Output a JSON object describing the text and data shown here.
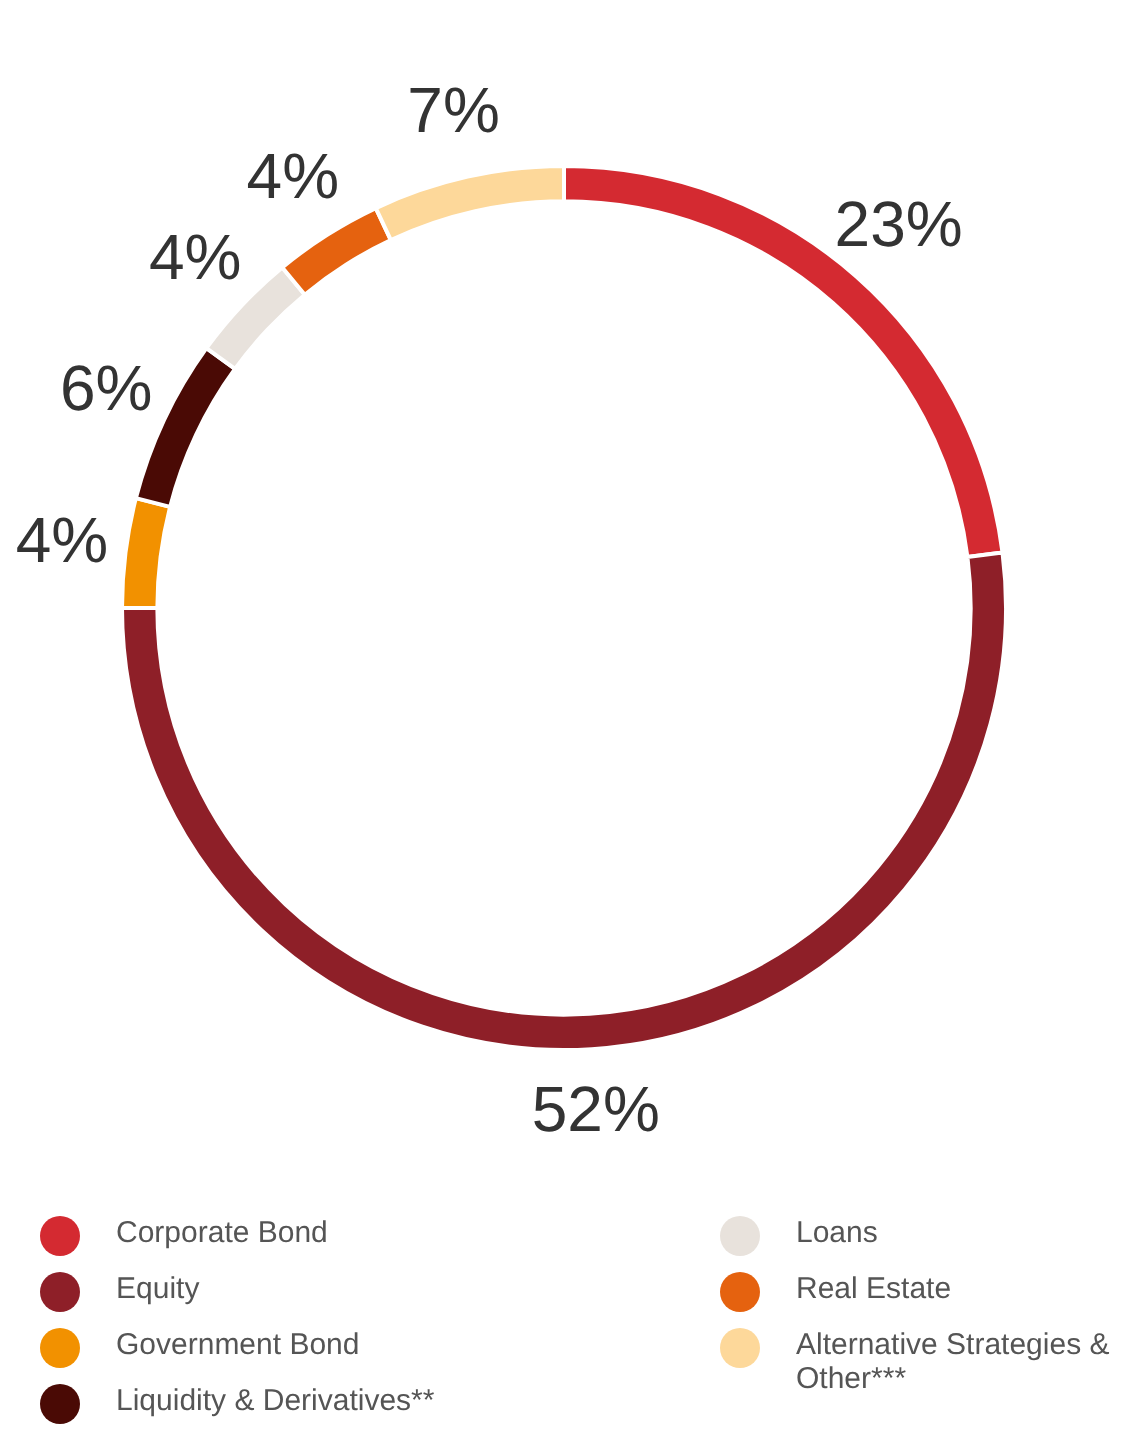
{
  "chart_data": {
    "type": "donut",
    "categories": [
      "Corporate Bond",
      "Equity",
      "Government Bond",
      "Liquidity & Derivatives**",
      "Loans",
      "Real Estate",
      "Alternative Strategies & Other***"
    ],
    "values": [
      23,
      52,
      4,
      6,
      4,
      4,
      7
    ],
    "colors": [
      "#d42a31",
      "#8e1f28",
      "#f29100",
      "#4a0a05",
      "#e8e2dc",
      "#e5620f",
      "#fdd89a"
    ],
    "value_labels": [
      "23%",
      "52%",
      "4%",
      "6%",
      "4%",
      "4%",
      "7%"
    ],
    "legend": "bottom"
  }
}
